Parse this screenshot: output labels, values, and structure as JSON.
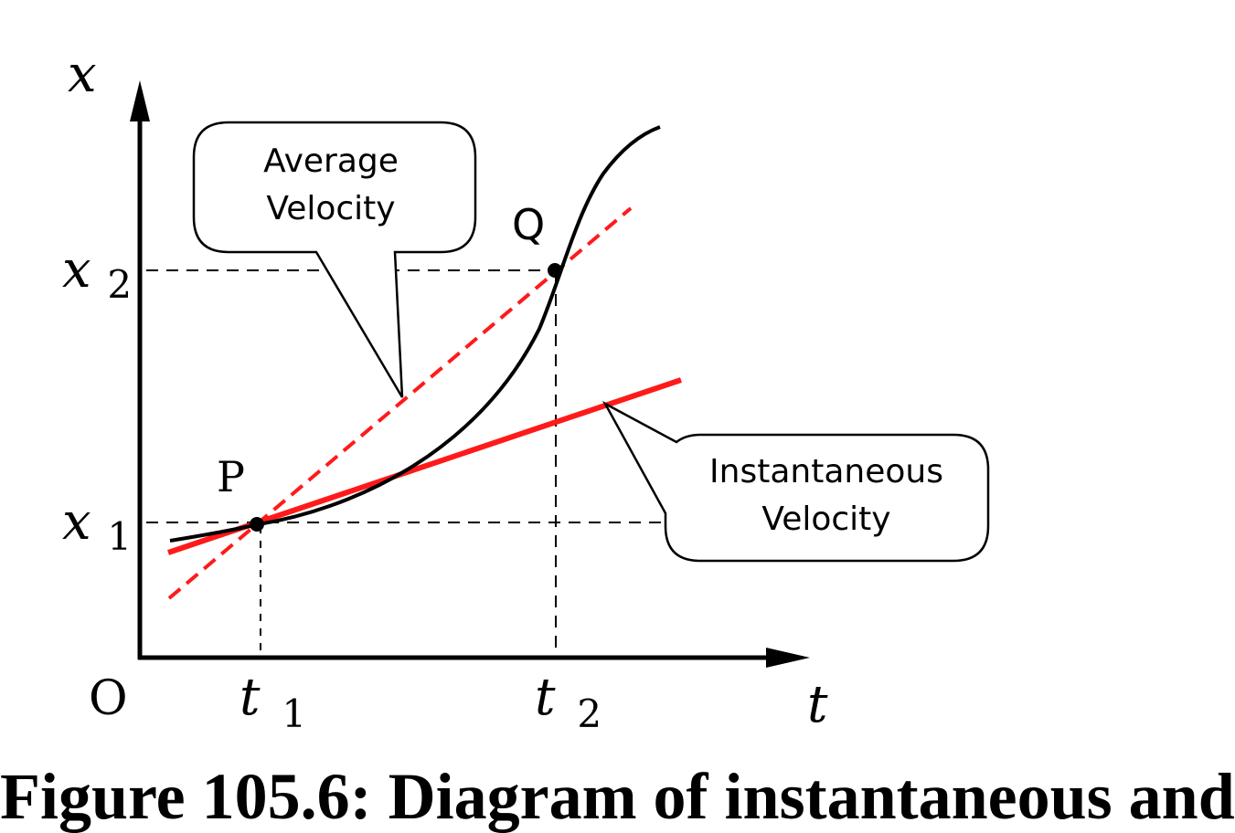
{
  "axes": {
    "x_axis_label": "t",
    "y_axis_label": "x",
    "origin_label": "O",
    "t1": {
      "main": "t",
      "sub": "1"
    },
    "t2": {
      "main": "t",
      "sub": "2"
    },
    "x1": {
      "main": "x",
      "sub": "1"
    },
    "x2": {
      "main": "x",
      "sub": "2"
    }
  },
  "points": {
    "p_label": "P",
    "q_label": "Q"
  },
  "callouts": {
    "average": {
      "line1": "Average",
      "line2": "Velocity"
    },
    "instantaneous": {
      "line1": "Instantaneous",
      "line2": "Velocity"
    }
  },
  "caption": "Figure 105.6: Diagram of instantaneous and",
  "colors": {
    "curve": "#000000",
    "average_line": "#ff1a1a",
    "tangent_line": "#ff1a1a",
    "guide": "#000000"
  }
}
